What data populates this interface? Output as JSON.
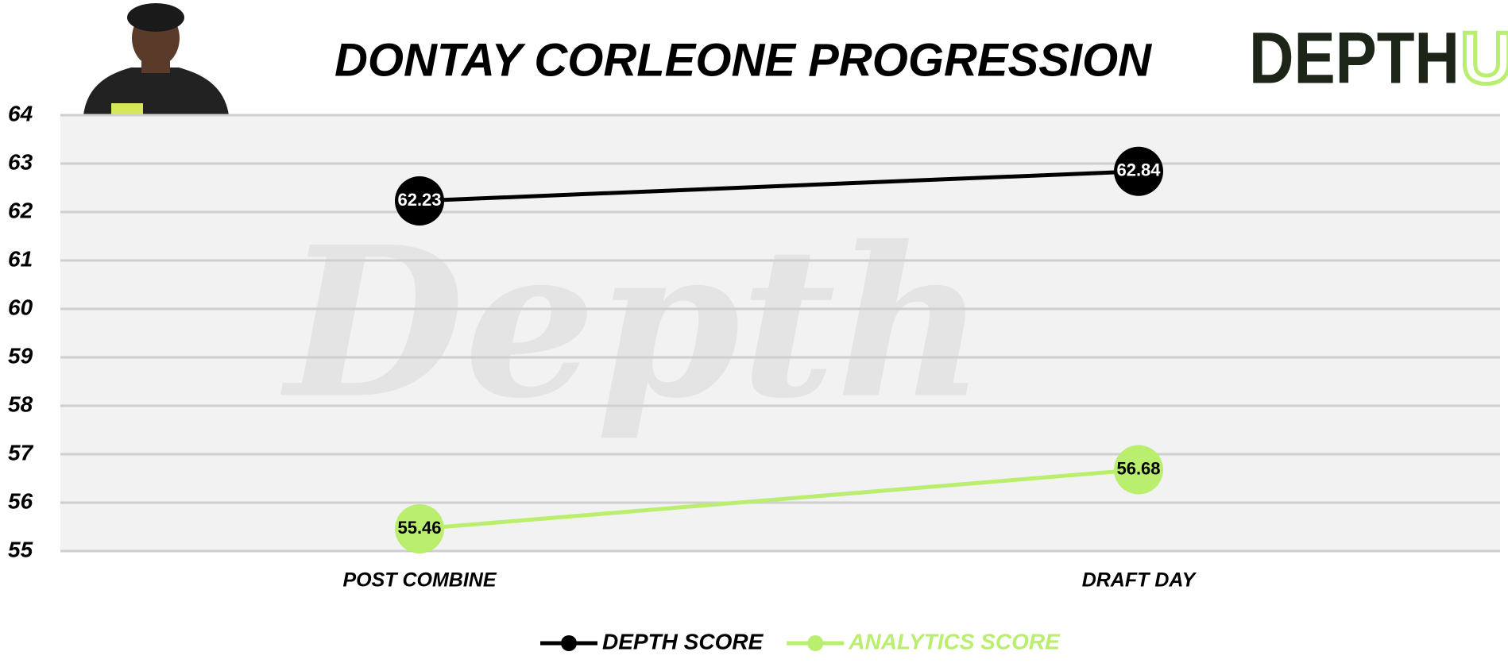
{
  "chart_data": {
    "type": "line",
    "title": "DONTAY CORLEONE PROGRESSION",
    "logo": {
      "text": "DEPTH",
      "accent": "U"
    },
    "watermark": "Depth",
    "categories": [
      "POST COMBINE",
      "DRAFT DAY"
    ],
    "series": [
      {
        "name": "DEPTH SCORE",
        "color": "#000000",
        "values": [
          62.23,
          62.84
        ]
      },
      {
        "name": "ANALYTICS SCORE",
        "color": "#b9ee6e",
        "values": [
          55.46,
          56.68
        ]
      }
    ],
    "ylim": [
      55,
      64
    ],
    "yticks": [
      55,
      56,
      57,
      58,
      59,
      60,
      61,
      62,
      63,
      64
    ],
    "grid": true,
    "legend": "bottom"
  }
}
